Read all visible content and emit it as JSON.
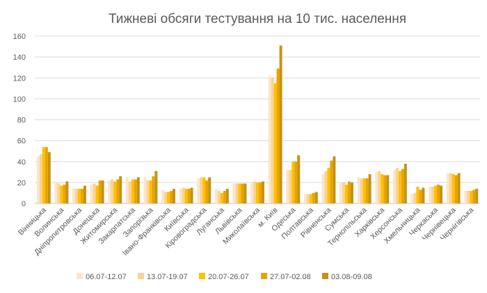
{
  "chart_data": {
    "type": "bar",
    "title": "Тижневі обсяги тестування на 10 тис. населення",
    "xlabel": "",
    "ylabel": "",
    "ylim": [
      0,
      160
    ],
    "yticks": [
      0,
      20,
      40,
      60,
      80,
      100,
      120,
      140,
      160
    ],
    "grid": true,
    "legend_position": "bottom",
    "categories": [
      "Вінницька",
      "Волинська",
      "Дніпропетровська",
      "Донецька",
      "Житомирська",
      "Закарпатська",
      "Запорізька",
      "Івано-Франківська",
      "Київська",
      "Кіровоградська",
      "Луганська",
      "Львівська",
      "Миколаївська",
      "м. Київ",
      "Одеська",
      "Полтавська",
      "Рівненська",
      "Сумська",
      "Тернопільська",
      "Харківська",
      "Херсонська",
      "Хмельницька",
      "Черкаська",
      "Чернівецька",
      "Чернігівська"
    ],
    "series": [
      {
        "name": "06.07-12.07",
        "color": "#FBE5CD",
        "values": [
          45,
          21,
          15,
          18,
          22,
          25,
          25,
          13,
          14,
          24,
          14,
          19,
          20,
          122,
          32,
          9,
          28,
          20,
          25,
          30,
          32,
          9,
          16,
          29,
          12
        ]
      },
      {
        "name": "13.07-19.07",
        "color": "#FCD38F",
        "values": [
          47,
          19,
          14,
          19,
          23,
          21,
          22,
          11,
          15,
          25,
          12,
          19,
          21,
          120,
          32,
          9,
          31,
          20,
          24,
          31,
          34,
          10,
          16,
          29,
          12
        ]
      },
      {
        "name": "20.07-26.07",
        "color": "#FFC000",
        "values": [
          54,
          17,
          14,
          17,
          21,
          23,
          22,
          11,
          14,
          25,
          10,
          19,
          20,
          115,
          40,
          9,
          34,
          18,
          24,
          28,
          31,
          16,
          17,
          28,
          12
        ]
      },
      {
        "name": "27.07-02.08",
        "color": "#E8A400",
        "values": [
          54,
          18,
          14,
          22,
          23,
          23,
          26,
          12,
          14,
          22,
          12,
          19,
          20,
          129,
          40,
          10,
          41,
          21,
          24,
          27,
          33,
          13,
          18,
          27,
          13
        ]
      },
      {
        "name": "03.08-09.08",
        "color": "#C69214",
        "values": [
          49,
          21,
          17,
          22,
          26,
          25,
          31,
          14,
          15,
          25,
          14,
          19,
          21,
          151,
          46,
          11,
          45,
          20,
          28,
          27,
          38,
          15,
          17,
          29,
          14
        ]
      }
    ]
  }
}
